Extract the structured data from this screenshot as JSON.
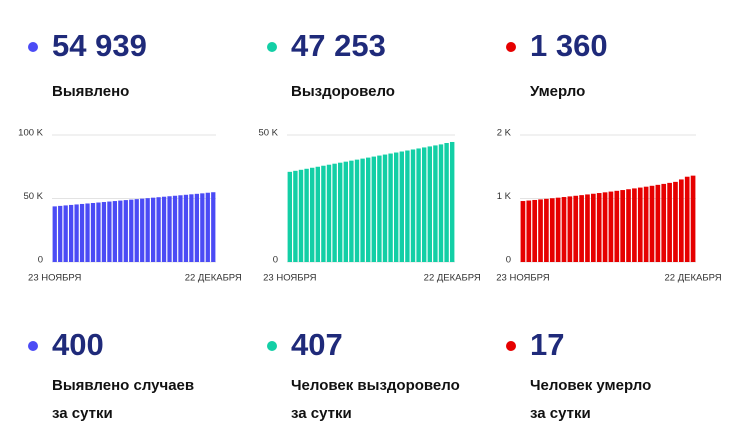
{
  "stats": [
    {
      "color": "#4b4bf5",
      "value": "54 939",
      "label": "Выявлено"
    },
    {
      "color": "#13cfa6",
      "value": "47 253",
      "label": "Выздоровело"
    },
    {
      "color": "#e60000",
      "value": "1 360",
      "label": "Умерло"
    }
  ],
  "daily": [
    {
      "color": "#4b4bf5",
      "value": "400",
      "lines": [
        "Выявлено случаев",
        "за сутки"
      ]
    },
    {
      "color": "#13cfa6",
      "value": "407",
      "lines": [
        "Человек выздоровело",
        "за сутки"
      ]
    },
    {
      "color": "#e60000",
      "value": "17",
      "lines": [
        "Человек умерло",
        "за сутки"
      ]
    }
  ],
  "chart_data": [
    {
      "type": "bar",
      "color": "#4b4bf5",
      "categories": [
        "23 НОЯБРЯ",
        null,
        null,
        null,
        null,
        null,
        null,
        null,
        null,
        null,
        null,
        null,
        null,
        null,
        null,
        null,
        null,
        null,
        null,
        null,
        null,
        null,
        null,
        null,
        null,
        null,
        null,
        null,
        null,
        "22 ДЕКАБРЯ"
      ],
      "values": [
        43800,
        44180,
        44560,
        44940,
        45320,
        45700,
        46080,
        46460,
        46840,
        47220,
        47600,
        47980,
        48360,
        48740,
        49120,
        49500,
        49880,
        50260,
        50640,
        51020,
        51400,
        51780,
        52160,
        52540,
        52920,
        53300,
        53680,
        54060,
        54539,
        54939
      ],
      "ylim": [
        0,
        100000
      ],
      "yticks": [
        0,
        {
          "value": 50000,
          "label": "50 K"
        },
        {
          "value": 100000,
          "label": "100 K"
        }
      ],
      "grid": true
    },
    {
      "type": "bar",
      "color": "#13cfa6",
      "categories": [
        "23 НОЯБРЯ",
        null,
        null,
        null,
        null,
        null,
        null,
        null,
        null,
        null,
        null,
        null,
        null,
        null,
        null,
        null,
        null,
        null,
        null,
        null,
        null,
        null,
        null,
        null,
        null,
        null,
        null,
        null,
        null,
        "22 ДЕКАБРЯ"
      ],
      "values": [
        35500,
        35900,
        36300,
        36700,
        37100,
        37500,
        37900,
        38300,
        38700,
        39100,
        39500,
        39900,
        40300,
        40700,
        41100,
        41500,
        41900,
        42300,
        42700,
        43100,
        43500,
        43900,
        44300,
        44700,
        45100,
        45500,
        45900,
        46300,
        46846,
        47253
      ],
      "ylim": [
        0,
        50000
      ],
      "yticks": [
        0,
        {
          "value": 50000,
          "label": "50 K"
        }
      ],
      "grid": true
    },
    {
      "type": "bar",
      "color": "#e60000",
      "categories": [
        "23 НОЯБРЯ",
        null,
        null,
        null,
        null,
        null,
        null,
        null,
        null,
        null,
        null,
        null,
        null,
        null,
        null,
        null,
        null,
        null,
        null,
        null,
        null,
        null,
        null,
        null,
        null,
        null,
        null,
        null,
        null,
        "22 ДЕКАБРЯ"
      ],
      "values": [
        960,
        968,
        977,
        986,
        995,
        1004,
        1013,
        1023,
        1033,
        1043,
        1053,
        1064,
        1075,
        1086,
        1097,
        1109,
        1121,
        1133,
        1146,
        1159,
        1172,
        1186,
        1200,
        1215,
        1230,
        1246,
        1262,
        1300,
        1343,
        1360
      ],
      "ylim": [
        0,
        2000
      ],
      "yticks": [
        0,
        {
          "value": 1000,
          "label": "1 K"
        },
        {
          "value": 2000,
          "label": "2 K"
        }
      ],
      "grid": true
    }
  ]
}
